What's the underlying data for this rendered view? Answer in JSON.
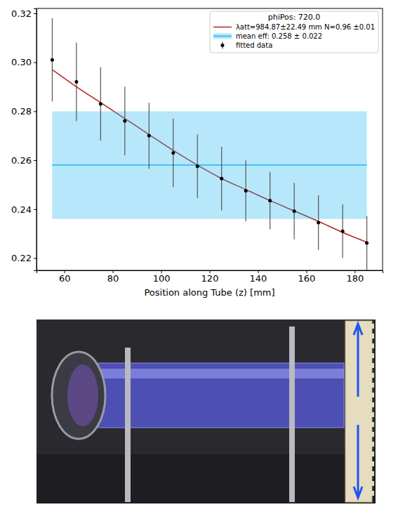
{
  "chart_data": {
    "type": "scatter",
    "legend_title": "phiPos: 720.0",
    "x_label": "Position along Tube (z) [mm]",
    "xlim": [
      48.5,
      191.5
    ],
    "xticks": [
      60,
      80,
      100,
      120,
      140,
      160,
      180
    ],
    "ylim": [
      0.215,
      0.322
    ],
    "yticks": [
      0.22,
      0.24,
      0.26,
      0.28,
      {
        "value": 0.3,
        "label": "0.30"
      },
      0.32
    ],
    "legend": "upper right",
    "series": [
      {
        "name": "λatt=984.87±22.49 mm N=0.96 ±0.01",
        "type": "line",
        "color": "#b8231c",
        "x": [
          55,
          65,
          75,
          85,
          95,
          105,
          115,
          125,
          135,
          145,
          155,
          165,
          175,
          185
        ],
        "values": [
          0.297,
          0.29,
          0.2835,
          0.277,
          0.2705,
          0.264,
          0.258,
          0.2525,
          0.248,
          0.2435,
          0.2393,
          0.235,
          0.2305,
          0.2265
        ]
      },
      {
        "name": "mean eff: 0.258 ± 0.022",
        "type": "band",
        "color": "#1fb4ee",
        "x": [
          55,
          185
        ],
        "values": [
          0.258,
          0.258
        ],
        "errors": [
          0.022,
          0.022
        ]
      },
      {
        "name": "fitted data",
        "type": "scatter",
        "color": "#000000",
        "marker": "o",
        "x": [
          55,
          65,
          75,
          85,
          95,
          105,
          115,
          125,
          135,
          145,
          155,
          165,
          175,
          185
        ],
        "values": [
          0.301,
          0.292,
          0.283,
          0.276,
          0.27,
          0.263,
          0.2575,
          0.2525,
          0.2475,
          0.2435,
          0.2392,
          0.2345,
          0.231,
          0.2262
        ],
        "errors": [
          0.017,
          0.016,
          0.015,
          0.014,
          0.0135,
          0.014,
          0.013,
          0.013,
          0.0125,
          0.0118,
          0.0115,
          0.0112,
          0.011,
          0.011
        ]
      }
    ]
  }
}
